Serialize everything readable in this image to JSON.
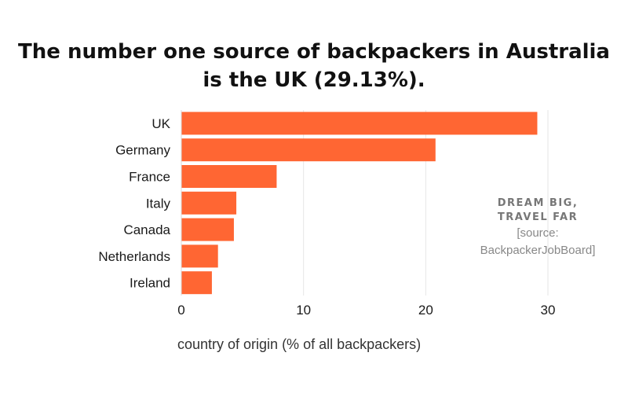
{
  "title": {
    "line1": "The number one source of backpackers in Australia",
    "line2": "is the UK (29.13%)."
  },
  "chart_data": {
    "type": "bar",
    "orientation": "horizontal",
    "categories": [
      "UK",
      "Germany",
      "France",
      "Italy",
      "Canada",
      "Netherlands",
      "Ireland"
    ],
    "values": [
      29.13,
      20.8,
      7.8,
      4.5,
      4.3,
      3.0,
      2.5
    ],
    "xlim": [
      0,
      30
    ],
    "xticks": [
      "0",
      "10",
      "20",
      "30"
    ],
    "xlabel": "country of origin (% of all backpackers)",
    "ylabel": "",
    "grid": "vertical",
    "bar_color": "#ff6633"
  },
  "branding": {
    "line1": "DREAM BIG,",
    "line2": "TRAVEL FAR",
    "source1": "[source:",
    "source2": "BackpackerJobBoard]"
  }
}
